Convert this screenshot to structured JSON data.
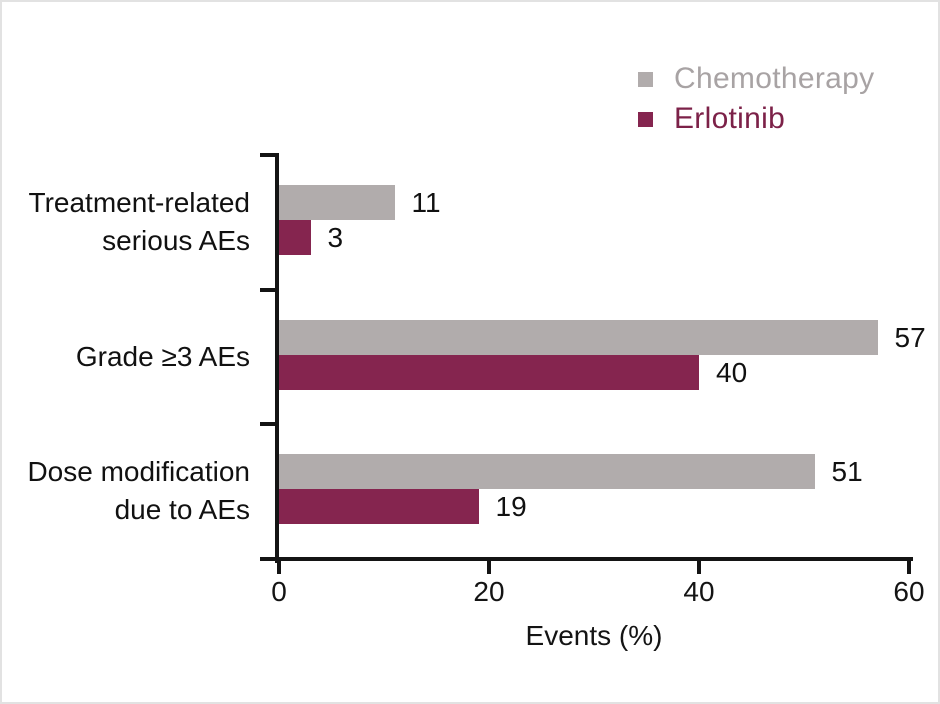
{
  "figure": {
    "background": "#ffffff",
    "border_color": "#e2e2e2",
    "text_color": "#141414",
    "axis_color": "#141414"
  },
  "legend": {
    "position": "top-right",
    "items": [
      {
        "label": "Chemotherapy",
        "swatch_color": "#b1acac",
        "text_color": "#a8a3a4"
      },
      {
        "label": "Erlotinib",
        "swatch_color": "#85254f",
        "text_color": "#7c2148"
      }
    ]
  },
  "chart_data": {
    "type": "bar",
    "orientation": "horizontal",
    "title": "",
    "xlabel": "Events (%)",
    "ylabel": "",
    "xlim": [
      0,
      60
    ],
    "xticks": [
      0,
      20,
      40,
      60
    ],
    "grid": false,
    "value_labels": true,
    "legend_position": "top-right",
    "categories": [
      "Treatment-related serious AEs",
      "Grade ≥3 AEs",
      "Dose modification due to AEs"
    ],
    "category_lines": [
      [
        "Treatment-related",
        "serious AEs"
      ],
      [
        "Grade ≥3 AEs",
        ""
      ],
      [
        "Dose modification",
        "due to AEs"
      ]
    ],
    "series": [
      {
        "name": "Chemotherapy",
        "color": "#b1acac",
        "values": [
          11,
          57,
          51
        ]
      },
      {
        "name": "Erlotinib",
        "color": "#85254f",
        "values": [
          3,
          40,
          19
        ]
      }
    ]
  }
}
